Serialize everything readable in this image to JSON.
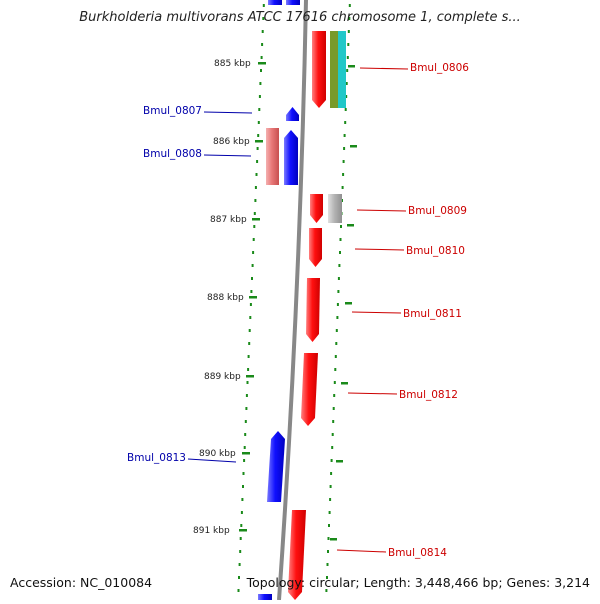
{
  "title": "Burkholderia multivorans ATCC 17616 chromosome 1, complete s...",
  "accession": "Accession: NC_010084",
  "summary": "Topology: circular; Length: 3,448,466 bp; Genes: 3,214",
  "colors": {
    "forward": "#ff0000",
    "reverse": "#0000ff",
    "pseudo_light": "#e87878",
    "gray_gene": "#b4b4b4",
    "tick": "#1a8a1a",
    "backbone": "#888888",
    "teal": "#20c8c8",
    "olive": "#789a2a"
  },
  "kbp_ticks": [
    {
      "label": "885 kbp"
    },
    {
      "label": "886 kbp"
    },
    {
      "label": "887 kbp"
    },
    {
      "label": "888 kbp"
    },
    {
      "label": "889 kbp"
    },
    {
      "label": "890 kbp"
    },
    {
      "label": "891 kbp"
    }
  ],
  "genes": [
    {
      "label": "Bmul_0806",
      "strand": "forward"
    },
    {
      "label": "Bmul_0807",
      "strand": "reverse"
    },
    {
      "label": "Bmul_0808",
      "strand": "reverse"
    },
    {
      "label": "Bmul_0809",
      "strand": "forward"
    },
    {
      "label": "Bmul_0810",
      "strand": "forward"
    },
    {
      "label": "Bmul_0811",
      "strand": "forward"
    },
    {
      "label": "Bmul_0812",
      "strand": "forward"
    },
    {
      "label": "Bmul_0813",
      "strand": "reverse"
    },
    {
      "label": "Bmul_0814",
      "strand": "forward"
    }
  ]
}
